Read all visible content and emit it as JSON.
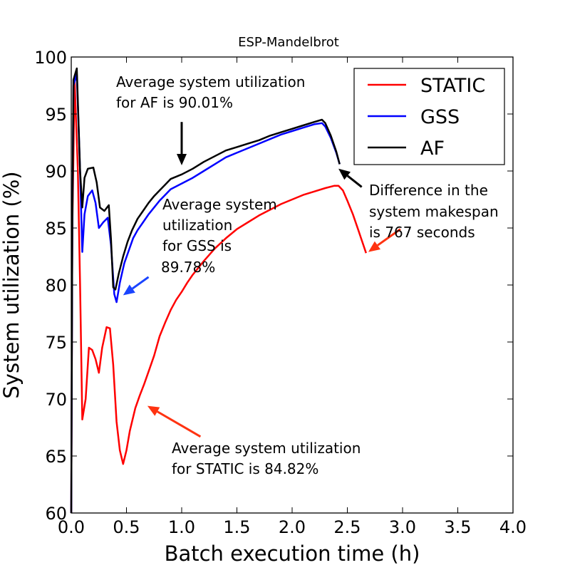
{
  "chart_data": {
    "type": "line",
    "title": "ESP-Mandelbrot",
    "xlabel": "Batch execution time (h)",
    "ylabel": "System utilization (%)",
    "xlim": [
      0.0,
      4.0
    ],
    "ylim": [
      60,
      100
    ],
    "xticks": [
      "0.0",
      "0.5",
      "1.0",
      "1.5",
      "2.0",
      "2.5",
      "3.0",
      "3.5",
      "4.0"
    ],
    "yticks": [
      "60",
      "65",
      "70",
      "75",
      "80",
      "85",
      "90",
      "95",
      "100"
    ],
    "legend_position": "top-right",
    "series": [
      {
        "name": "STATIC",
        "color": "#ff0000",
        "points": [
          [
            0.0,
            60
          ],
          [
            0.01,
            85
          ],
          [
            0.03,
            98
          ],
          [
            0.06,
            90
          ],
          [
            0.08,
            80
          ],
          [
            0.1,
            68.2
          ],
          [
            0.13,
            70
          ],
          [
            0.16,
            74.5
          ],
          [
            0.19,
            74.3
          ],
          [
            0.22,
            73.5
          ],
          [
            0.25,
            72.3
          ],
          [
            0.28,
            74.5
          ],
          [
            0.32,
            76.3
          ],
          [
            0.35,
            76.2
          ],
          [
            0.38,
            73
          ],
          [
            0.41,
            68
          ],
          [
            0.44,
            65.5
          ],
          [
            0.47,
            64.3
          ],
          [
            0.5,
            65.5
          ],
          [
            0.53,
            67.2
          ],
          [
            0.58,
            69.2
          ],
          [
            0.62,
            70.3
          ],
          [
            0.66,
            71.3
          ],
          [
            0.7,
            72.4
          ],
          [
            0.75,
            73.8
          ],
          [
            0.8,
            75.5
          ],
          [
            0.85,
            76.7
          ],
          [
            0.9,
            77.8
          ],
          [
            0.95,
            78.7
          ],
          [
            1.0,
            79.4
          ],
          [
            1.05,
            80.2
          ],
          [
            1.1,
            80.9
          ],
          [
            1.2,
            82.1
          ],
          [
            1.3,
            83.2
          ],
          [
            1.4,
            84.1
          ],
          [
            1.5,
            84.9
          ],
          [
            1.6,
            85.5
          ],
          [
            1.7,
            86.1
          ],
          [
            1.8,
            86.6
          ],
          [
            1.9,
            87.1
          ],
          [
            2.0,
            87.5
          ],
          [
            2.1,
            87.9
          ],
          [
            2.2,
            88.2
          ],
          [
            2.3,
            88.5
          ],
          [
            2.38,
            88.7
          ],
          [
            2.42,
            88.7
          ],
          [
            2.46,
            88.3
          ],
          [
            2.5,
            87.4
          ],
          [
            2.55,
            86.2
          ],
          [
            2.6,
            84.8
          ],
          [
            2.67,
            82.8
          ]
        ]
      },
      {
        "name": "GSS",
        "color": "#0000ff",
        "points": [
          [
            0.0,
            60
          ],
          [
            0.01,
            85
          ],
          [
            0.02,
            97.5
          ],
          [
            0.05,
            98.5
          ],
          [
            0.08,
            90
          ],
          [
            0.1,
            82.9
          ],
          [
            0.12,
            86.2
          ],
          [
            0.15,
            87.8
          ],
          [
            0.19,
            88.3
          ],
          [
            0.22,
            87.2
          ],
          [
            0.25,
            85
          ],
          [
            0.29,
            85.5
          ],
          [
            0.33,
            85.9
          ],
          [
            0.36,
            83.5
          ],
          [
            0.39,
            79.2
          ],
          [
            0.41,
            78.5
          ],
          [
            0.44,
            80.2
          ],
          [
            0.48,
            81.9
          ],
          [
            0.52,
            83
          ],
          [
            0.56,
            84.1
          ],
          [
            0.6,
            84.8
          ],
          [
            0.65,
            85.5
          ],
          [
            0.7,
            86.2
          ],
          [
            0.75,
            86.8
          ],
          [
            0.8,
            87.4
          ],
          [
            0.85,
            87.9
          ],
          [
            0.9,
            88.4
          ],
          [
            1.0,
            88.9
          ],
          [
            1.1,
            89.4
          ],
          [
            1.2,
            90.0
          ],
          [
            1.3,
            90.6
          ],
          [
            1.4,
            91.2
          ],
          [
            1.5,
            91.6
          ],
          [
            1.6,
            92.0
          ],
          [
            1.7,
            92.4
          ],
          [
            1.8,
            92.8
          ],
          [
            1.9,
            93.2
          ],
          [
            2.0,
            93.5
          ],
          [
            2.1,
            93.8
          ],
          [
            2.2,
            94.1
          ],
          [
            2.27,
            94.2
          ],
          [
            2.3,
            93.9
          ],
          [
            2.35,
            92.9
          ],
          [
            2.4,
            91.6
          ],
          [
            2.43,
            90.6
          ]
        ]
      },
      {
        "name": "AF",
        "color": "#000000",
        "points": [
          [
            0.0,
            60
          ],
          [
            0.01,
            85
          ],
          [
            0.02,
            98
          ],
          [
            0.05,
            99
          ],
          [
            0.08,
            90
          ],
          [
            0.1,
            86.8
          ],
          [
            0.12,
            89.4
          ],
          [
            0.15,
            90.2
          ],
          [
            0.2,
            90.3
          ],
          [
            0.23,
            89
          ],
          [
            0.26,
            86.8
          ],
          [
            0.3,
            86.5
          ],
          [
            0.34,
            87
          ],
          [
            0.36,
            84
          ],
          [
            0.38,
            79.8
          ],
          [
            0.4,
            79.6
          ],
          [
            0.43,
            81
          ],
          [
            0.47,
            82.5
          ],
          [
            0.51,
            83.8
          ],
          [
            0.55,
            84.8
          ],
          [
            0.6,
            85.8
          ],
          [
            0.65,
            86.5
          ],
          [
            0.7,
            87.2
          ],
          [
            0.75,
            87.8
          ],
          [
            0.8,
            88.3
          ],
          [
            0.85,
            88.8
          ],
          [
            0.9,
            89.3
          ],
          [
            1.0,
            89.7
          ],
          [
            1.1,
            90.2
          ],
          [
            1.2,
            90.8
          ],
          [
            1.3,
            91.3
          ],
          [
            1.4,
            91.8
          ],
          [
            1.5,
            92.1
          ],
          [
            1.6,
            92.4
          ],
          [
            1.7,
            92.7
          ],
          [
            1.8,
            93.1
          ],
          [
            1.9,
            93.4
          ],
          [
            2.0,
            93.7
          ],
          [
            2.1,
            94.0
          ],
          [
            2.2,
            94.3
          ],
          [
            2.27,
            94.5
          ],
          [
            2.3,
            94.2
          ],
          [
            2.35,
            93.1
          ],
          [
            2.4,
            91.7
          ],
          [
            2.43,
            90.6
          ]
        ]
      }
    ],
    "annotations": [
      {
        "lines": [
          "Average system utilization",
          "for AF is 90.01%"
        ],
        "arrow_color": "#000000",
        "arrow_from": [
          1.0,
          94.3
        ],
        "arrow_to": [
          1.0,
          90.5
        ]
      },
      {
        "lines": [
          "Average system",
          "utilization",
          "for GSS is",
          "89.78%"
        ],
        "arrow_color": "#1a44ff",
        "arrow_from": [
          0.7,
          80.7
        ],
        "arrow_to": [
          0.47,
          79.1
        ]
      },
      {
        "lines": [
          "Average system utilization",
          "for STATIC is 84.82%"
        ],
        "arrow_color": "#ff3311",
        "arrow_from": [
          1.17,
          66.7
        ],
        "arrow_to": [
          0.69,
          69.4
        ]
      },
      {
        "lines": [
          "Difference in the",
          "system makespan",
          "is 767 seconds"
        ],
        "arrow_color": "#000000",
        "arrow_from": [
          2.63,
          88.6
        ],
        "arrow_to": [
          2.42,
          90.2
        ]
      },
      {
        "lines": [],
        "arrow_color": "#ff3311",
        "arrow_from": [
          2.98,
          84.9
        ],
        "arrow_to": [
          2.69,
          82.9
        ]
      }
    ]
  }
}
